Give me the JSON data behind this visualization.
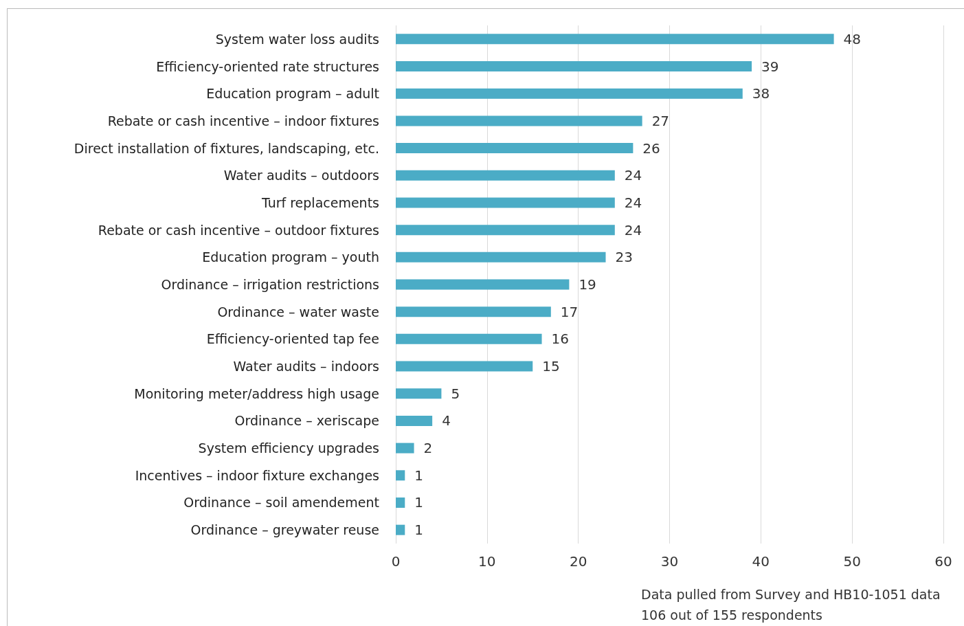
{
  "chart_data": {
    "type": "bar",
    "orientation": "horizontal",
    "categories": [
      "System water loss audits",
      "Efficiency-oriented rate structures",
      "Education program – adult",
      "Rebate or cash incentive – indoor fixtures",
      "Direct installation of fixtures, landscaping, etc.",
      "Water audits – outdoors",
      "Turf replacements",
      "Rebate or cash incentive – outdoor fixtures",
      "Education program – youth",
      "Ordinance – irrigation restrictions",
      "Ordinance – water waste",
      "Efficiency-oriented tap fee",
      "Water audits – indoors",
      "Monitoring meter/address high usage",
      "Ordinance – xeriscape",
      "System efficiency upgrades",
      "Incentives – indoor fixture exchanges",
      "Ordinance – soil amendement",
      "Ordinance – greywater reuse"
    ],
    "values": [
      48,
      39,
      38,
      27,
      26,
      24,
      24,
      24,
      23,
      19,
      17,
      16,
      15,
      5,
      4,
      2,
      1,
      1,
      1
    ],
    "color": "#4bacc6",
    "xlim": [
      0,
      60
    ],
    "xticks": [
      0,
      10,
      20,
      30,
      40,
      50,
      60
    ],
    "grid": "x",
    "data_labels": true,
    "annotations": [
      "Data pulled from Survey and HB10-1051 data",
      "106 out of 155 respondents"
    ]
  }
}
